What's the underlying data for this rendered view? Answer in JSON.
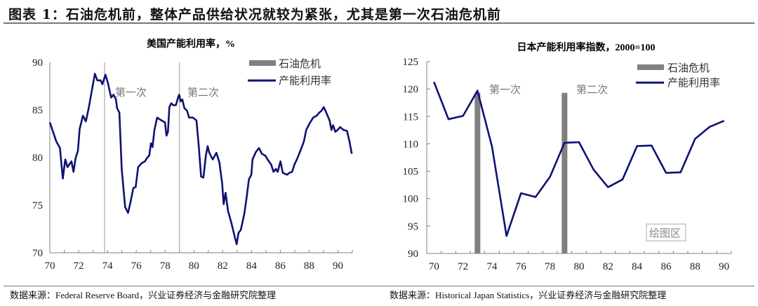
{
  "figure_title": "图表 1：石油危机前，整体产品供给状况就较为紧张，尤其是第一次石油危机前",
  "sources": {
    "left": "数据来源：Federal Reserve Board，兴业证券经济与金融研究院整理",
    "right": "数据来源：Historical Japan Statistics，兴业证券经济与金融研究院整理"
  },
  "colors": {
    "line": "#0d1273",
    "bar": "#808080",
    "axis": "#808080",
    "annotation": "#777777"
  },
  "chart_data": [
    {
      "type": "line",
      "title": "美国产能利用率，%",
      "xlim": [
        1970,
        1991
      ],
      "ylim": [
        70,
        90
      ],
      "yticks": [
        70,
        75,
        80,
        85,
        90
      ],
      "xtick_labels": [
        "70",
        "72",
        "74",
        "76",
        "78",
        "80",
        "82",
        "84",
        "86",
        "88",
        "90"
      ],
      "grid": false,
      "legend": {
        "placement": "top-right",
        "entries": [
          "石油危机",
          "产能利用率"
        ]
      },
      "crisis_markers": [
        1973.8,
        1979.0
      ],
      "annotations": [
        "第一次",
        "第二次"
      ],
      "series": [
        {
          "name": "产能利用率",
          "points": [
            [
              1970.0,
              83.7
            ],
            [
              1970.45,
              81.7
            ],
            [
              1970.7,
              81.0
            ],
            [
              1970.9,
              77.8
            ],
            [
              1971.07,
              79.8
            ],
            [
              1971.23,
              79.0
            ],
            [
              1971.5,
              79.6
            ],
            [
              1971.64,
              78.5
            ],
            [
              1971.8,
              80.0
            ],
            [
              1971.95,
              80.7
            ],
            [
              1972.07,
              83.0
            ],
            [
              1972.3,
              84.4
            ],
            [
              1972.5,
              83.8
            ],
            [
              1972.7,
              85.2
            ],
            [
              1972.97,
              87.5
            ],
            [
              1973.13,
              88.8
            ],
            [
              1973.3,
              88.1
            ],
            [
              1973.53,
              88.1
            ],
            [
              1973.65,
              87.7
            ],
            [
              1973.86,
              88.7
            ],
            [
              1974.02,
              87.9
            ],
            [
              1974.26,
              86.3
            ],
            [
              1974.42,
              86.6
            ],
            [
              1974.59,
              86.1
            ],
            [
              1974.67,
              85.2
            ],
            [
              1974.83,
              84.7
            ],
            [
              1974.99,
              78.8
            ],
            [
              1975.23,
              74.8
            ],
            [
              1975.43,
              74.2
            ],
            [
              1975.6,
              75.3
            ],
            [
              1975.8,
              76.8
            ],
            [
              1975.96,
              76.9
            ],
            [
              1976.13,
              79.0
            ],
            [
              1976.37,
              79.4
            ],
            [
              1976.6,
              79.6
            ],
            [
              1976.77,
              80.0
            ],
            [
              1976.9,
              80.2
            ],
            [
              1977.02,
              81.5
            ],
            [
              1977.13,
              81.1
            ],
            [
              1977.26,
              82.9
            ],
            [
              1977.45,
              84.2
            ],
            [
              1977.75,
              83.9
            ],
            [
              1977.99,
              83.7
            ],
            [
              1978.1,
              82.3
            ],
            [
              1978.2,
              82.7
            ],
            [
              1978.3,
              85.3
            ],
            [
              1978.43,
              85.7
            ],
            [
              1978.56,
              85.5
            ],
            [
              1978.75,
              85.5
            ],
            [
              1978.9,
              86.3
            ],
            [
              1978.98,
              86.6
            ],
            [
              1979.08,
              85.9
            ],
            [
              1979.2,
              86.1
            ],
            [
              1979.34,
              85.2
            ],
            [
              1979.53,
              84.9
            ],
            [
              1979.66,
              84.2
            ],
            [
              1979.93,
              84.2
            ],
            [
              1980.18,
              83.9
            ],
            [
              1980.34,
              81.2
            ],
            [
              1980.5,
              78.0
            ],
            [
              1980.66,
              77.9
            ],
            [
              1980.83,
              80.2
            ],
            [
              1980.96,
              81.2
            ],
            [
              1981.07,
              80.5
            ],
            [
              1981.31,
              79.8
            ],
            [
              1981.56,
              80.5
            ],
            [
              1981.77,
              79.5
            ],
            [
              1981.96,
              77.3
            ],
            [
              1982.07,
              75.1
            ],
            [
              1982.2,
              76.3
            ],
            [
              1982.37,
              74.4
            ],
            [
              1982.61,
              73.1
            ],
            [
              1982.85,
              71.6
            ],
            [
              1982.97,
              70.9
            ],
            [
              1983.1,
              72.1
            ],
            [
              1983.26,
              72.4
            ],
            [
              1983.5,
              74.1
            ],
            [
              1983.66,
              75.8
            ],
            [
              1983.82,
              77.7
            ],
            [
              1983.99,
              78.2
            ],
            [
              1984.07,
              79.8
            ],
            [
              1984.31,
              80.6
            ],
            [
              1984.52,
              81.0
            ],
            [
              1984.72,
              80.4
            ],
            [
              1984.96,
              80.2
            ],
            [
              1985.2,
              79.6
            ],
            [
              1985.36,
              79.3
            ],
            [
              1985.53,
              78.5
            ],
            [
              1985.69,
              78.8
            ],
            [
              1985.82,
              78.5
            ],
            [
              1986.01,
              79.6
            ],
            [
              1986.17,
              78.4
            ],
            [
              1986.47,
              78.2
            ],
            [
              1986.63,
              78.4
            ],
            [
              1986.82,
              78.5
            ],
            [
              1986.99,
              79.3
            ],
            [
              1987.15,
              79.8
            ],
            [
              1987.39,
              80.7
            ],
            [
              1987.64,
              81.7
            ],
            [
              1987.8,
              82.9
            ],
            [
              1988.04,
              83.6
            ],
            [
              1988.28,
              84.2
            ],
            [
              1988.53,
              84.4
            ],
            [
              1988.69,
              84.7
            ],
            [
              1988.85,
              84.9
            ],
            [
              1989.01,
              85.3
            ],
            [
              1989.17,
              84.8
            ],
            [
              1989.42,
              83.9
            ],
            [
              1989.55,
              82.9
            ],
            [
              1989.66,
              83.4
            ],
            [
              1989.82,
              82.7
            ],
            [
              1989.98,
              82.9
            ],
            [
              1990.15,
              83.2
            ],
            [
              1990.39,
              82.9
            ],
            [
              1990.63,
              82.8
            ],
            [
              1990.8,
              81.7
            ],
            [
              1990.96,
              80.4
            ]
          ]
        }
      ]
    },
    {
      "type": "line",
      "title": "日本产能利用率指数，2000=100",
      "ylim": [
        90,
        125
      ],
      "yticks": [
        90,
        95,
        100,
        105,
        110,
        115,
        120,
        125
      ],
      "categories": [
        1970,
        1971,
        1972,
        1973,
        1974,
        1975,
        1976,
        1977,
        1978,
        1979,
        1980,
        1981,
        1982,
        1983,
        1984,
        1985,
        1986,
        1987,
        1988,
        1989,
        1990
      ],
      "xtick_labels": [
        "70",
        "72",
        "74",
        "76",
        "78",
        "80",
        "82",
        "84",
        "86",
        "88",
        "90"
      ],
      "grid": false,
      "legend": {
        "placement": "top-right",
        "entries": [
          "石油危机",
          "产能利用率"
        ]
      },
      "annotations": [
        "第一次",
        "第二次"
      ],
      "plot_area_label": "绘图区",
      "series": [
        {
          "name": "产能利用率",
          "values": [
            121.3,
            114.5,
            115.1,
            119.7,
            109.5,
            93.2,
            101.0,
            100.3,
            104.0,
            110.2,
            110.3,
            105.3,
            102.1,
            103.5,
            109.6,
            109.7,
            104.7,
            104.8,
            110.9,
            113.1,
            114.2
          ]
        },
        {
          "name": "石油危机",
          "type": "bar",
          "bars": [
            [
              1973,
              119.3
            ],
            [
              1979,
              119.3
            ]
          ]
        }
      ]
    }
  ]
}
